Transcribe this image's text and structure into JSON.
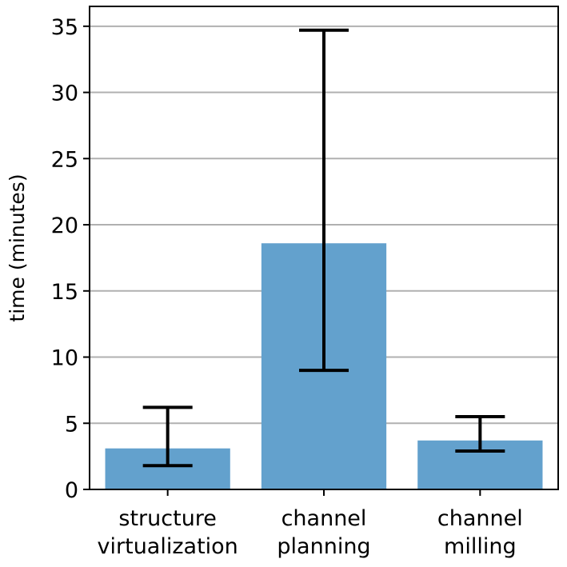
{
  "chart_data": {
    "type": "bar",
    "title": "",
    "xlabel": "",
    "ylabel": "time (minutes)",
    "categories": [
      [
        "structure",
        "virtualization"
      ],
      [
        "channel",
        "planning"
      ],
      [
        "channel",
        "milling"
      ]
    ],
    "values": [
      3.1,
      18.6,
      3.7
    ],
    "error_bars": [
      {
        "lower": 1.8,
        "upper": 6.2
      },
      {
        "lower": 9.0,
        "upper": 34.7
      },
      {
        "lower": 2.9,
        "upper": 5.5
      }
    ],
    "ylim": [
      0,
      36.5
    ],
    "yticks": [
      0,
      5,
      10,
      15,
      20,
      25,
      30,
      35
    ],
    "grid": "horizontal",
    "legend": "none",
    "colors": {
      "bar": "#63a1cd",
      "error_bar": "#000000",
      "grid": "#b0b0b0",
      "axis": "#000000"
    }
  }
}
